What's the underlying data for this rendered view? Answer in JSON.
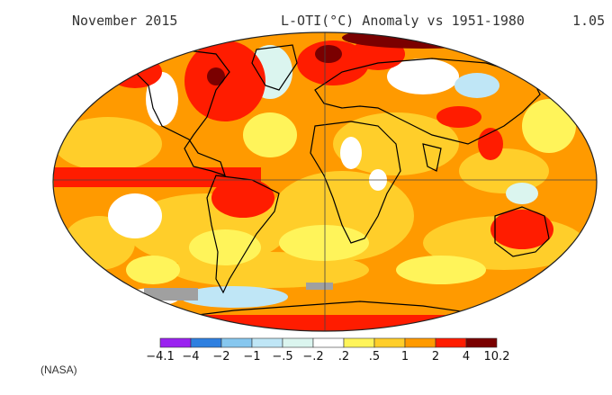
{
  "header": {
    "left": "November 2015",
    "center": "L-OTI(°C) Anomaly vs 1951-1980",
    "right": "1.05"
  },
  "legend": {
    "labels": [
      "-4.1",
      "-4",
      "-2",
      "-1",
      "-.5",
      "-.2",
      ".2",
      ".5",
      "1",
      "2",
      "4",
      "10.2"
    ],
    "colors": [
      "#9a22f0",
      "#2e7fe0",
      "#86c7ef",
      "#bfe6f6",
      "#dbf5ef",
      "#ffffff",
      "#fff45a",
      "#ffce2a",
      "#ff9a00",
      "#ff1c00",
      "#7a0000"
    ]
  },
  "colors": {
    "ocean_warm": "#ff9a00",
    "ocean_mild": "#ffce2a",
    "neutral": "#ffffff",
    "hot": "#ff1c00",
    "very_hot": "#7a0000",
    "cool": "#bfe6f6",
    "no_data": "#a0a0a0",
    "coastline": "#000000"
  },
  "credit": "(NASA)"
}
